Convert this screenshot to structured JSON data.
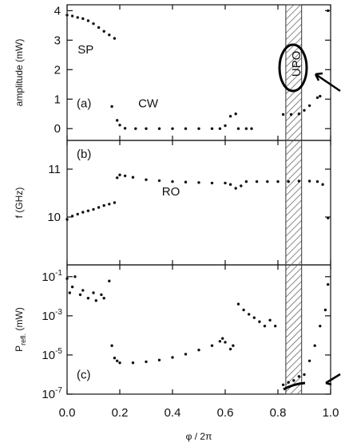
{
  "figure": {
    "x_label": "φ / 2π",
    "x_ticks": [
      "0.0",
      "0.2",
      "0.4",
      "0.6",
      "0.8",
      "1.0"
    ],
    "shaded_region": [
      0.83,
      0.89
    ]
  },
  "chart_data": [
    {
      "type": "scatter",
      "panel": "(a)",
      "ylabel": "amplitude (mW)",
      "y_ticks": [
        "0",
        "1",
        "2",
        "3",
        "4"
      ],
      "ylim": [
        -0.4,
        4.2
      ],
      "xlim": [
        0,
        1
      ],
      "annotations": [
        {
          "text": "SP",
          "x": 0.04,
          "y": 2.55
        },
        {
          "text": "CW",
          "x": 0.27,
          "y": 0.72
        },
        {
          "text": "UPO",
          "x": 0.87,
          "y": 2.2
        }
      ],
      "series": [
        {
          "points": [
            [
              0.0,
              3.85
            ],
            [
              0.02,
              3.82
            ],
            [
              0.04,
              3.77
            ],
            [
              0.06,
              3.73
            ],
            [
              0.08,
              3.66
            ],
            [
              0.1,
              3.56
            ],
            [
              0.12,
              3.43
            ],
            [
              0.14,
              3.3
            ],
            [
              0.16,
              3.18
            ],
            [
              0.18,
              3.06
            ],
            [
              0.17,
              0.75
            ],
            [
              0.19,
              0.28
            ],
            [
              0.2,
              0.12
            ],
            [
              0.22,
              0.01
            ],
            [
              0.26,
              0.0
            ],
            [
              0.3,
              0.0
            ],
            [
              0.35,
              0.0
            ],
            [
              0.4,
              0.0
            ],
            [
              0.45,
              0.0
            ],
            [
              0.5,
              0.0
            ],
            [
              0.55,
              0.0
            ],
            [
              0.58,
              0.0
            ],
            [
              0.6,
              0.1
            ],
            [
              0.62,
              0.42
            ],
            [
              0.64,
              0.5
            ],
            [
              0.65,
              0.0
            ],
            [
              0.68,
              0.0
            ],
            [
              0.7,
              0.0
            ],
            [
              0.82,
              0.48
            ],
            [
              0.85,
              0.48
            ],
            [
              0.88,
              0.5
            ],
            [
              0.9,
              0.62
            ],
            [
              0.92,
              0.78
            ],
            [
              0.95,
              1.05
            ],
            [
              0.96,
              1.1
            ],
            [
              0.99,
              4.0
            ]
          ]
        }
      ]
    },
    {
      "type": "scatter",
      "panel": "(b)",
      "ylabel": "f (GHz)",
      "y_ticks": [
        "10",
        "11"
      ],
      "ylim": [
        9.0,
        11.6
      ],
      "xlim": [
        0,
        1
      ],
      "annotations": [
        {
          "text": "RO",
          "x": 0.36,
          "y": 10.45
        }
      ],
      "series": [
        {
          "points": [
            [
              0.0,
              9.95
            ],
            [
              0.02,
              10.02
            ],
            [
              0.04,
              10.06
            ],
            [
              0.06,
              10.1
            ],
            [
              0.08,
              10.13
            ],
            [
              0.1,
              10.16
            ],
            [
              0.12,
              10.2
            ],
            [
              0.14,
              10.24
            ],
            [
              0.16,
              10.27
            ],
            [
              0.18,
              10.3
            ],
            [
              0.19,
              10.82
            ],
            [
              0.2,
              10.88
            ],
            [
              0.22,
              10.86
            ],
            [
              0.25,
              10.83
            ],
            [
              0.3,
              10.78
            ],
            [
              0.35,
              10.76
            ],
            [
              0.4,
              10.74
            ],
            [
              0.45,
              10.73
            ],
            [
              0.5,
              10.72
            ],
            [
              0.55,
              10.71
            ],
            [
              0.6,
              10.71
            ],
            [
              0.62,
              10.68
            ],
            [
              0.64,
              10.6
            ],
            [
              0.66,
              10.65
            ],
            [
              0.68,
              10.74
            ],
            [
              0.72,
              10.74
            ],
            [
              0.76,
              10.74
            ],
            [
              0.8,
              10.74
            ],
            [
              0.84,
              10.74
            ],
            [
              0.88,
              10.75
            ],
            [
              0.92,
              10.75
            ],
            [
              0.95,
              10.74
            ],
            [
              0.97,
              10.68
            ],
            [
              0.99,
              9.98
            ]
          ]
        }
      ]
    },
    {
      "type": "scatter",
      "panel": "(c)",
      "ylabel": "Prefl. (mW)",
      "log_y": true,
      "y_ticks": [
        "10-1",
        "10-3",
        "10-5",
        "10-7"
      ],
      "ylim": [
        1e-07,
        0.4
      ],
      "xlim": [
        0,
        1
      ],
      "series": [
        {
          "points": [
            [
              0.0,
              0.08
            ],
            [
              0.01,
              0.015
            ],
            [
              0.02,
              0.03
            ],
            [
              0.03,
              0.1
            ],
            [
              0.05,
              0.012
            ],
            [
              0.06,
              0.02
            ],
            [
              0.08,
              0.008
            ],
            [
              0.1,
              0.015
            ],
            [
              0.11,
              0.006
            ],
            [
              0.13,
              0.012
            ],
            [
              0.14,
              0.008
            ],
            [
              0.16,
              0.06
            ],
            [
              0.17,
              3e-05
            ],
            [
              0.18,
              7e-06
            ],
            [
              0.19,
              5e-06
            ],
            [
              0.2,
              4e-06
            ],
            [
              0.25,
              4e-06
            ],
            [
              0.3,
              4.5e-06
            ],
            [
              0.35,
              5.5e-06
            ],
            [
              0.4,
              7.5e-06
            ],
            [
              0.45,
              1.1e-05
            ],
            [
              0.5,
              1.8e-05
            ],
            [
              0.55,
              3e-05
            ],
            [
              0.58,
              5e-05
            ],
            [
              0.59,
              7e-05
            ],
            [
              0.6,
              4.5e-05
            ],
            [
              0.62,
              2e-05
            ],
            [
              0.63,
              3e-05
            ],
            [
              0.65,
              0.004
            ],
            [
              0.67,
              0.002
            ],
            [
              0.69,
              0.0012
            ],
            [
              0.71,
              0.0008
            ],
            [
              0.73,
              0.0005
            ],
            [
              0.75,
              0.0003
            ],
            [
              0.77,
              0.0006
            ],
            [
              0.79,
              0.0003
            ],
            [
              0.82,
              3e-07
            ],
            [
              0.84,
              4e-07
            ],
            [
              0.86,
              5e-07
            ],
            [
              0.88,
              8e-07
            ],
            [
              0.9,
              1e-06
            ],
            [
              0.92,
              5e-06
            ],
            [
              0.94,
              3e-05
            ],
            [
              0.96,
              0.0003
            ],
            [
              0.98,
              0.002
            ],
            [
              0.99,
              0.04
            ]
          ]
        }
      ]
    }
  ]
}
